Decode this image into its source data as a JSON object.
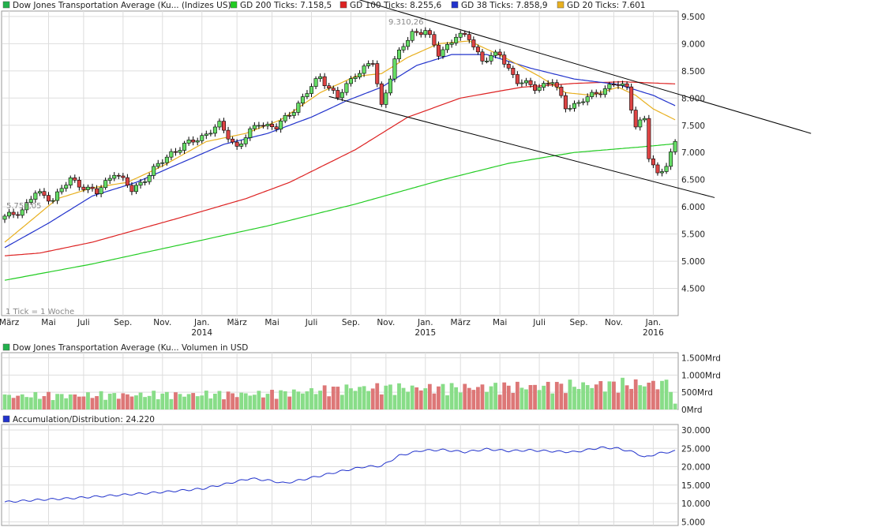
{
  "legend_main": [
    {
      "label": "Dow Jones Transportation Average (Ku... (Indizes US)",
      "color": "#22b14c"
    },
    {
      "label": "GD 200 Ticks: 7.158,5",
      "color": "#22cc22"
    },
    {
      "label": "GD 100 Ticks: 8.255,6",
      "color": "#dd2222"
    },
    {
      "label": "GD 38 Ticks: 7.858,9",
      "color": "#2233cc"
    },
    {
      "label": "GD 20 Ticks: 7.601",
      "color": "#e8b020"
    }
  ],
  "legend_volume": {
    "label": "Dow Jones Transportation Average (Ku... Volumen in USD",
    "color": "#22b14c"
  },
  "legend_ad": {
    "label": "Accumulation/Distribution: 24.220",
    "color": "#2233cc"
  },
  "annotations": {
    "high": "9.310,26",
    "low": "5.757,05",
    "tick_note": "1 Tick = 1 Woche"
  },
  "colors": {
    "up": "#66dd66",
    "down": "#dd4444",
    "vol_up": "#88dd88",
    "vol_down": "#dd7777",
    "grid": "#dddddd",
    "trendline": "#000000"
  },
  "chart_data": [
    {
      "type": "candlestick",
      "title": "Dow Jones Transportation Average (Ku... (Indizes US)",
      "ylim": [
        4000,
        9600
      ],
      "y_ticks": [
        {
          "value": 9500,
          "label": "9.500"
        },
        {
          "value": 9000,
          "label": "9.000"
        },
        {
          "value": 8500,
          "label": "8.500"
        },
        {
          "value": 8000,
          "label": "8.000"
        },
        {
          "value": 7500,
          "label": "7.500"
        },
        {
          "value": 7000,
          "label": "7.000"
        },
        {
          "value": 6500,
          "label": "6.500"
        },
        {
          "value": 6000,
          "label": "6.000"
        },
        {
          "value": 5500,
          "label": "5.500"
        },
        {
          "value": 5000,
          "label": "5.000"
        },
        {
          "value": 4500,
          "label": "4.500"
        }
      ],
      "x_ticks": [
        {
          "week": 1,
          "label": "März",
          "year": ""
        },
        {
          "week": 10,
          "label": "Mai",
          "year": ""
        },
        {
          "week": 18,
          "label": "Juli",
          "year": ""
        },
        {
          "week": 27,
          "label": "Sep.",
          "year": ""
        },
        {
          "week": 36,
          "label": "Nov.",
          "year": ""
        },
        {
          "week": 45,
          "label": "Jan.",
          "year": "2014"
        },
        {
          "week": 53,
          "label": "März",
          "year": ""
        },
        {
          "week": 61,
          "label": "Mai",
          "year": ""
        },
        {
          "week": 70,
          "label": "Juli",
          "year": ""
        },
        {
          "week": 79,
          "label": "Sep.",
          "year": ""
        },
        {
          "week": 87,
          "label": "Nov.",
          "year": ""
        },
        {
          "week": 96,
          "label": "Jan.",
          "year": "2015"
        },
        {
          "week": 104,
          "label": "März",
          "year": ""
        },
        {
          "week": 113,
          "label": "Mai",
          "year": ""
        },
        {
          "week": 122,
          "label": "Juli",
          "year": ""
        },
        {
          "week": 131,
          "label": "Sep.",
          "year": ""
        },
        {
          "week": 139,
          "label": "Nov.",
          "year": ""
        },
        {
          "week": 148,
          "label": "Jan.",
          "year": "2016"
        }
      ],
      "close_anchors": [
        {
          "week": 0,
          "value": 5800
        },
        {
          "week": 4,
          "value": 5950
        },
        {
          "week": 7,
          "value": 6250
        },
        {
          "week": 11,
          "value": 6150
        },
        {
          "week": 15,
          "value": 6500
        },
        {
          "week": 21,
          "value": 6250
        },
        {
          "week": 25,
          "value": 6650
        },
        {
          "week": 29,
          "value": 6300
        },
        {
          "week": 33,
          "value": 6600
        },
        {
          "week": 38,
          "value": 7000
        },
        {
          "week": 44,
          "value": 7250
        },
        {
          "week": 49,
          "value": 7500
        },
        {
          "week": 53,
          "value": 7100
        },
        {
          "week": 58,
          "value": 7550
        },
        {
          "week": 62,
          "value": 7450
        },
        {
          "week": 66,
          "value": 7800
        },
        {
          "week": 72,
          "value": 8400
        },
        {
          "week": 76,
          "value": 8000
        },
        {
          "week": 80,
          "value": 8450
        },
        {
          "week": 84,
          "value": 8650
        },
        {
          "week": 86,
          "value": 7850
        },
        {
          "week": 89,
          "value": 8700
        },
        {
          "week": 93,
          "value": 9200
        },
        {
          "week": 96,
          "value": 9250
        },
        {
          "week": 99,
          "value": 8800
        },
        {
          "week": 103,
          "value": 9150
        },
        {
          "week": 106,
          "value": 9100
        },
        {
          "week": 109,
          "value": 8700
        },
        {
          "week": 113,
          "value": 8800
        },
        {
          "week": 117,
          "value": 8300
        },
        {
          "week": 121,
          "value": 8200
        },
        {
          "week": 125,
          "value": 8300
        },
        {
          "week": 128,
          "value": 7850
        },
        {
          "week": 131,
          "value": 7900
        },
        {
          "week": 135,
          "value": 8100
        },
        {
          "week": 139,
          "value": 8250
        },
        {
          "week": 142,
          "value": 8200
        },
        {
          "week": 144,
          "value": 7500
        },
        {
          "week": 146,
          "value": 7600
        },
        {
          "week": 147,
          "value": 6900
        },
        {
          "week": 149,
          "value": 6600
        },
        {
          "week": 151,
          "value": 6800
        },
        {
          "week": 153,
          "value": 7150
        }
      ],
      "moving_averages": [
        {
          "name": "GD 200 Ticks: 7.158,5",
          "color": "#22cc22",
          "points": [
            [
              0,
              4650
            ],
            [
              20,
              4950
            ],
            [
              40,
              5300
            ],
            [
              60,
              5650
            ],
            [
              80,
              6050
            ],
            [
              100,
              6500
            ],
            [
              115,
              6800
            ],
            [
              130,
              7000
            ],
            [
              145,
              7100
            ],
            [
              153,
              7160
            ]
          ]
        },
        {
          "name": "GD 100 Ticks: 8.255,6",
          "color": "#dd2222",
          "points": [
            [
              0,
              5100
            ],
            [
              8,
              5150
            ],
            [
              20,
              5350
            ],
            [
              40,
              5800
            ],
            [
              55,
              6150
            ],
            [
              65,
              6450
            ],
            [
              80,
              7050
            ],
            [
              92,
              7650
            ],
            [
              104,
              8000
            ],
            [
              118,
              8200
            ],
            [
              130,
              8270
            ],
            [
              141,
              8300
            ],
            [
              153,
              8260
            ]
          ]
        },
        {
          "name": "GD 38 Ticks: 7.858,9",
          "color": "#2233cc",
          "points": [
            [
              0,
              5250
            ],
            [
              10,
              5700
            ],
            [
              20,
              6200
            ],
            [
              30,
              6450
            ],
            [
              40,
              6800
            ],
            [
              50,
              7150
            ],
            [
              60,
              7350
            ],
            [
              70,
              7650
            ],
            [
              78,
              7950
            ],
            [
              86,
              8200
            ],
            [
              94,
              8600
            ],
            [
              102,
              8800
            ],
            [
              110,
              8800
            ],
            [
              120,
              8550
            ],
            [
              130,
              8350
            ],
            [
              140,
              8250
            ],
            [
              148,
              8050
            ],
            [
              153,
              7860
            ]
          ]
        },
        {
          "name": "GD 20 Ticks: 7.601",
          "color": "#e8b020",
          "points": [
            [
              0,
              5350
            ],
            [
              6,
              5750
            ],
            [
              12,
              6150
            ],
            [
              20,
              6350
            ],
            [
              28,
              6450
            ],
            [
              36,
              6750
            ],
            [
              46,
              7200
            ],
            [
              55,
              7350
            ],
            [
              63,
              7600
            ],
            [
              72,
              8100
            ],
            [
              80,
              8400
            ],
            [
              86,
              8450
            ],
            [
              92,
              8750
            ],
            [
              99,
              9000
            ],
            [
              106,
              9050
            ],
            [
              114,
              8750
            ],
            [
              122,
              8400
            ],
            [
              128,
              8100
            ],
            [
              134,
              8050
            ],
            [
              140,
              8200
            ],
            [
              144,
              8050
            ],
            [
              148,
              7800
            ],
            [
              153,
              7600
            ]
          ]
        }
      ],
      "trendlines": [
        {
          "from": [
            77,
            9900
          ],
          "to": [
            184,
            7350
          ]
        },
        {
          "from": [
            74,
            8030
          ],
          "to": [
            162,
            6170
          ]
        }
      ]
    },
    {
      "type": "bar",
      "title": "Dow Jones Transportation Average (Ku... Volumen in USD",
      "ylim": [
        0,
        1650
      ],
      "y_ticks": [
        {
          "value": 1500,
          "label": "1.500Mrd"
        },
        {
          "value": 1000,
          "label": "1.000Mrd"
        },
        {
          "value": 500,
          "label": "500Mrd"
        },
        {
          "value": 0,
          "label": "0Mrd"
        }
      ],
      "anchors": [
        {
          "week": 0,
          "value": 390
        },
        {
          "week": 30,
          "value": 420
        },
        {
          "week": 60,
          "value": 450
        },
        {
          "week": 80,
          "value": 620
        },
        {
          "week": 100,
          "value": 620
        },
        {
          "week": 120,
          "value": 660
        },
        {
          "week": 140,
          "value": 720
        },
        {
          "week": 153,
          "value": 760
        }
      ],
      "last_value": 170
    },
    {
      "type": "line",
      "title": "Accumulation/Distribution: 24.220",
      "ylim": [
        4000,
        31500
      ],
      "y_ticks": [
        {
          "value": 30000,
          "label": "30.000"
        },
        {
          "value": 25000,
          "label": "25.000"
        },
        {
          "value": 20000,
          "label": "20.000"
        },
        {
          "value": 15000,
          "label": "15.000"
        },
        {
          "value": 10000,
          "label": "10.000"
        },
        {
          "value": 5000,
          "label": "5.000"
        }
      ],
      "points": [
        [
          0,
          10400
        ],
        [
          8,
          11000
        ],
        [
          15,
          11400
        ],
        [
          25,
          12200
        ],
        [
          35,
          13000
        ],
        [
          45,
          14000
        ],
        [
          50,
          15200
        ],
        [
          56,
          16800
        ],
        [
          60,
          16300
        ],
        [
          64,
          15500
        ],
        [
          70,
          17000
        ],
        [
          76,
          18600
        ],
        [
          82,
          20000
        ],
        [
          86,
          20200
        ],
        [
          90,
          23000
        ],
        [
          95,
          24400
        ],
        [
          100,
          24600
        ],
        [
          105,
          24000
        ],
        [
          110,
          24800
        ],
        [
          115,
          24300
        ],
        [
          120,
          24500
        ],
        [
          125,
          24200
        ],
        [
          130,
          24000
        ],
        [
          136,
          25200
        ],
        [
          140,
          25000
        ],
        [
          144,
          23800
        ],
        [
          146,
          22500
        ],
        [
          149,
          23600
        ],
        [
          153,
          24220
        ]
      ]
    }
  ]
}
